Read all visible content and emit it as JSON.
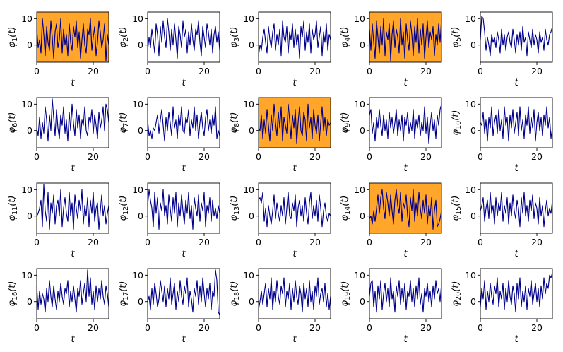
{
  "figure": {
    "colors": {
      "line": "#00008b",
      "highlight": "#ffa62b",
      "axes_bg": "#ffffff",
      "frame": "#000000"
    }
  },
  "chart_data": {
    "type": "line",
    "layout": "grid",
    "grid_rows": 4,
    "grid_cols": 5,
    "xlabel": "t",
    "xlim": [
      0,
      25.5
    ],
    "ylim": [
      -6.5,
      12.5
    ],
    "xticks": [
      0,
      20
    ],
    "yticks": [
      0,
      10
    ],
    "grid": false,
    "panels": [
      {
        "label_base": "φ",
        "label_sub": "1",
        "label_rest": "(t)",
        "highlighted": true,
        "x_start": 0,
        "x_step": 0.5,
        "values": [
          6,
          -1,
          2,
          -3,
          10,
          4,
          -4,
          7,
          1,
          -2,
          9,
          3,
          -5,
          5,
          8,
          -1,
          2,
          10,
          -3,
          6,
          0,
          4,
          -4,
          8,
          1,
          -2,
          7,
          3,
          9,
          -1,
          5,
          -5,
          2,
          8,
          0,
          -3,
          6,
          4,
          10,
          -2,
          3,
          7,
          -4,
          1,
          9,
          5,
          -1,
          2,
          8,
          -6,
          4,
          0
        ]
      },
      {
        "label_base": "φ",
        "label_sub": "2",
        "label_rest": "(t)",
        "highlighted": false,
        "x_start": 0,
        "x_step": 0.5,
        "values": [
          -2,
          3,
          -1,
          6,
          2,
          -3,
          8,
          4,
          -4,
          7,
          1,
          9,
          3,
          -1,
          10,
          5,
          -2,
          6,
          0,
          8,
          2,
          -5,
          7,
          4,
          -1,
          9,
          3,
          6,
          -3,
          5,
          0,
          8,
          2,
          -2,
          6,
          4,
          9,
          1,
          -4,
          7,
          3,
          -1,
          8,
          5,
          0,
          6,
          -3,
          4,
          7,
          1,
          5,
          -2
        ]
      },
      {
        "label_base": "φ",
        "label_sub": "3",
        "label_rest": "(t)",
        "highlighted": false,
        "x_start": 0,
        "x_step": 0.5,
        "values": [
          -4,
          0,
          -2,
          3,
          6,
          1,
          -3,
          7,
          2,
          -1,
          5,
          8,
          -2,
          4,
          0,
          6,
          -4,
          9,
          3,
          1,
          7,
          -3,
          5,
          2,
          8,
          -1,
          6,
          0,
          4,
          -5,
          7,
          3,
          9,
          -2,
          5,
          1,
          8,
          -3,
          6,
          2,
          4,
          9,
          -1,
          3,
          7,
          -4,
          5,
          1,
          8,
          -2,
          4,
          2
        ]
      },
      {
        "label_base": "φ",
        "label_sub": "4",
        "label_rest": "(t)",
        "highlighted": true,
        "x_start": 0,
        "x_step": 0.5,
        "values": [
          6,
          -2,
          8,
          1,
          -5,
          9,
          3,
          -3,
          7,
          0,
          10,
          -4,
          5,
          2,
          8,
          -6,
          4,
          9,
          -1,
          6,
          3,
          -3,
          10,
          0,
          5,
          -5,
          8,
          2,
          -2,
          9,
          4,
          -4,
          7,
          1,
          10,
          -3,
          6,
          0,
          8,
          -5,
          3,
          9,
          -1,
          5,
          2,
          7,
          -4,
          4,
          0,
          8,
          1,
          10
        ]
      },
      {
        "label_base": "φ",
        "label_sub": "5",
        "label_rest": "(t)",
        "highlighted": false,
        "x_start": 0,
        "x_step": 0.5,
        "values": [
          2,
          11,
          10,
          5,
          -2,
          3,
          0,
          -4,
          4,
          1,
          3,
          -1,
          5,
          2,
          -3,
          6,
          0,
          4,
          -2,
          3,
          5,
          1,
          -1,
          6,
          2,
          -3,
          4,
          0,
          5,
          -2,
          7,
          1,
          3,
          -4,
          5,
          2,
          -1,
          6,
          0,
          4,
          2,
          -3,
          5,
          1,
          3,
          -2,
          6,
          2,
          0,
          4,
          5,
          7
        ]
      },
      {
        "label_base": "φ",
        "label_sub": "6",
        "label_rest": "(t)",
        "highlighted": false,
        "x_start": 0,
        "x_step": 0.5,
        "values": [
          1,
          -2,
          5,
          -3,
          3,
          -1,
          9,
          4,
          -4,
          6,
          0,
          12,
          5,
          -2,
          8,
          1,
          -3,
          6,
          2,
          9,
          -1,
          4,
          -4,
          7,
          0,
          10,
          3,
          -2,
          8,
          1,
          6,
          -3,
          4,
          2,
          9,
          0,
          -2,
          5,
          3,
          8,
          -1,
          6,
          2,
          -3,
          7,
          1,
          4,
          9,
          0,
          10,
          8,
          3
        ]
      },
      {
        "label_base": "φ",
        "label_sub": "7",
        "label_rest": "(t)",
        "highlighted": false,
        "x_start": 0,
        "x_step": 0.5,
        "values": [
          4,
          -2,
          0,
          -3,
          1,
          0,
          3,
          6,
          -1,
          4,
          8,
          2,
          -4,
          5,
          0,
          7,
          3,
          -2,
          9,
          1,
          4,
          -3,
          6,
          2,
          9,
          0,
          -1,
          5,
          3,
          8,
          -2,
          4,
          1,
          9,
          0,
          6,
          -3,
          3,
          7,
          1,
          -2,
          5,
          8,
          0,
          4,
          -1,
          6,
          2,
          9,
          -3,
          0,
          -2
        ]
      },
      {
        "label_base": "φ",
        "label_sub": "8",
        "label_rest": "(t)",
        "highlighted": true,
        "x_start": 0,
        "x_step": 0.5,
        "values": [
          1,
          0,
          6,
          -3,
          4,
          -1,
          8,
          2,
          -4,
          6,
          0,
          10,
          3,
          -2,
          7,
          1,
          9,
          -4,
          5,
          2,
          -1,
          10,
          4,
          -3,
          6,
          1,
          8,
          -5,
          3,
          9,
          0,
          -2,
          7,
          4,
          -4,
          10,
          1,
          5,
          -3,
          8,
          2,
          -1,
          6,
          -4,
          3,
          9,
          0,
          5,
          -2,
          4,
          2,
          3
        ]
      },
      {
        "label_base": "φ",
        "label_sub": "9",
        "label_rest": "(t)",
        "highlighted": false,
        "x_start": 0,
        "x_step": 0.5,
        "values": [
          6,
          8,
          -1,
          3,
          -4,
          5,
          1,
          8,
          2,
          -2,
          6,
          0,
          4,
          -3,
          7,
          1,
          5,
          -1,
          3,
          8,
          -2,
          4,
          0,
          6,
          -4,
          5,
          2,
          7,
          -1,
          3,
          0,
          8,
          -3,
          4,
          1,
          6,
          -2,
          3,
          0,
          9,
          -1,
          5,
          -5,
          2,
          7,
          0,
          4,
          -3,
          6,
          2,
          8,
          10
        ]
      },
      {
        "label_base": "φ",
        "label_sub": "10",
        "label_rest": "(t)",
        "highlighted": false,
        "x_start": 0,
        "x_step": 0.5,
        "values": [
          3,
          2,
          7,
          -1,
          4,
          -4,
          5,
          1,
          9,
          -2,
          3,
          6,
          -1,
          8,
          0,
          4,
          -3,
          9,
          2,
          5,
          -4,
          6,
          1,
          8,
          -1,
          3,
          7,
          -2,
          9,
          0,
          4,
          -3,
          6,
          2,
          9,
          -1,
          5,
          1,
          8,
          -4,
          3,
          7,
          0,
          5,
          -2,
          6,
          2,
          9,
          1,
          5,
          -3,
          1
        ]
      },
      {
        "label_base": "φ",
        "label_sub": "11",
        "label_rest": "(t)",
        "highlighted": false,
        "x_start": 0,
        "x_step": 0.5,
        "values": [
          0,
          1,
          3,
          6,
          -4,
          12,
          2,
          -2,
          9,
          -5,
          5,
          1,
          8,
          -3,
          4,
          6,
          0,
          10,
          -4,
          3,
          7,
          1,
          -2,
          9,
          0,
          5,
          -5,
          8,
          3,
          -1,
          6,
          2,
          10,
          -3,
          4,
          0,
          7,
          -4,
          6,
          1,
          9,
          -2,
          3,
          5,
          -5,
          2,
          8,
          0,
          4,
          -3,
          1,
          4
        ]
      },
      {
        "label_base": "φ",
        "label_sub": "12",
        "label_rest": "(t)",
        "highlighted": false,
        "x_start": 0,
        "x_step": 0.5,
        "values": [
          4,
          10,
          6,
          3,
          -4,
          9,
          1,
          7,
          -5,
          5,
          2,
          10,
          0,
          4,
          -3,
          8,
          3,
          -2,
          7,
          1,
          9,
          -4,
          5,
          0,
          8,
          2,
          -3,
          6,
          1,
          9,
          -1,
          4,
          -5,
          7,
          3,
          0,
          8,
          -2,
          5,
          2,
          9,
          -4,
          4,
          1,
          7,
          -2,
          6,
          0,
          3,
          -1,
          4,
          1
        ]
      },
      {
        "label_base": "φ",
        "label_sub": "13",
        "label_rest": "(t)",
        "highlighted": false,
        "x_start": 0,
        "x_step": 0.5,
        "values": [
          6,
          7,
          5,
          9,
          -2,
          3,
          -4,
          4,
          0,
          -3,
          2,
          8,
          -1,
          5,
          1,
          -2,
          4,
          0,
          7,
          -3,
          3,
          9,
          0,
          -1,
          5,
          2,
          8,
          -4,
          3,
          6,
          0,
          4,
          -2,
          7,
          1,
          -3,
          5,
          9,
          -1,
          4,
          0,
          6,
          -2,
          8,
          3,
          -4,
          2,
          5,
          0,
          -2,
          1,
          0
        ]
      },
      {
        "label_base": "φ",
        "label_sub": "14",
        "label_rest": "(t)",
        "highlighted": true,
        "x_start": 0,
        "x_step": 0.5,
        "values": [
          -1,
          0,
          -3,
          2,
          -2,
          3,
          8,
          1,
          7,
          10,
          3,
          -1,
          9,
          5,
          0,
          8,
          2,
          -3,
          6,
          10,
          4,
          1,
          9,
          -2,
          5,
          3,
          8,
          0,
          -4,
          7,
          2,
          10,
          -2,
          5,
          0,
          9,
          3,
          -1,
          6,
          1,
          8,
          -3,
          4,
          0,
          7,
          -5,
          2,
          6,
          -4,
          -3,
          -1,
          2
        ]
      },
      {
        "label_base": "φ",
        "label_sub": "15",
        "label_rest": "(t)",
        "highlighted": false,
        "x_start": 0,
        "x_step": 0.5,
        "values": [
          2,
          4,
          7,
          -2,
          3,
          6,
          -1,
          9,
          1,
          4,
          -3,
          7,
          0,
          5,
          2,
          9,
          -2,
          4,
          1,
          7,
          -3,
          5,
          0,
          8,
          2,
          -1,
          6,
          3,
          -4,
          7,
          1,
          9,
          0,
          4,
          -2,
          6,
          2,
          8,
          -1,
          5,
          3,
          -3,
          7,
          0,
          4,
          -4,
          2,
          6,
          0,
          3,
          1,
          6
        ]
      },
      {
        "label_base": "φ",
        "label_sub": "16",
        "label_rest": "(t)",
        "highlighted": false,
        "x_start": 0,
        "x_step": 0.5,
        "values": [
          6,
          -3,
          4,
          -1,
          3,
          1,
          -4,
          5,
          0,
          8,
          2,
          -2,
          6,
          1,
          -3,
          4,
          0,
          7,
          2,
          -1,
          5,
          3,
          8,
          -2,
          4,
          0,
          6,
          1,
          -4,
          5,
          2,
          8,
          -1,
          3,
          7,
          0,
          12,
          2,
          9,
          -1,
          4,
          -3,
          6,
          0,
          5,
          1,
          8,
          2,
          -1,
          6,
          3,
          -2
        ]
      },
      {
        "label_base": "φ",
        "label_sub": "17",
        "label_rest": "(t)",
        "highlighted": false,
        "x_start": 0,
        "x_step": 0.5,
        "values": [
          0,
          2,
          -3,
          5,
          -1,
          7,
          3,
          -2,
          1,
          8,
          4,
          0,
          6,
          -2,
          5,
          1,
          9,
          -1,
          3,
          7,
          -3,
          4,
          0,
          8,
          2,
          -1,
          6,
          3,
          9,
          -2,
          4,
          1,
          -4,
          5,
          2,
          8,
          -1,
          6,
          0,
          9,
          3,
          -2,
          5,
          1,
          7,
          -3,
          4,
          2,
          12,
          8,
          -4,
          -5
        ]
      },
      {
        "label_base": "φ",
        "label_sub": "18",
        "label_rest": "(t)",
        "highlighted": false,
        "x_start": 0,
        "x_step": 0.5,
        "values": [
          -3,
          0,
          4,
          -1,
          3,
          7,
          -2,
          5,
          1,
          9,
          -3,
          4,
          0,
          8,
          2,
          -1,
          6,
          3,
          9,
          -2,
          4,
          1,
          7,
          -3,
          5,
          0,
          8,
          2,
          -1,
          6,
          3,
          -4,
          7,
          1,
          5,
          -2,
          8,
          0,
          4,
          -3,
          6,
          2,
          9,
          -1,
          3,
          5,
          0,
          7,
          -2,
          3,
          -3,
          2
        ]
      },
      {
        "label_base": "φ",
        "label_sub": "19",
        "label_rest": "(t)",
        "highlighted": false,
        "x_start": 0,
        "x_step": 0.5,
        "values": [
          2,
          7,
          8,
          -2,
          4,
          -4,
          6,
          1,
          8,
          -3,
          3,
          7,
          0,
          5,
          -2,
          9,
          1,
          4,
          -4,
          6,
          2,
          8,
          -1,
          5,
          0,
          7,
          -3,
          4,
          2,
          8,
          0,
          5,
          -2,
          6,
          1,
          9,
          -1,
          3,
          -4,
          5,
          2,
          7,
          0,
          4,
          -2,
          6,
          1,
          8,
          3,
          5,
          0,
          7
        ]
      },
      {
        "label_base": "φ",
        "label_sub": "20",
        "label_rest": "(t)",
        "highlighted": false,
        "x_start": 0,
        "x_step": 0.5,
        "values": [
          -2,
          5,
          1,
          8,
          -3,
          4,
          0,
          7,
          2,
          -1,
          6,
          3,
          9,
          -2,
          4,
          1,
          7,
          -3,
          5,
          0,
          8,
          2,
          -1,
          6,
          3,
          -4,
          7,
          1,
          9,
          -2,
          4,
          0,
          6,
          -3,
          5,
          2,
          8,
          -1,
          3,
          7,
          0,
          5,
          -2,
          6,
          1,
          9,
          3,
          7,
          5,
          10,
          9,
          11
        ]
      }
    ]
  }
}
